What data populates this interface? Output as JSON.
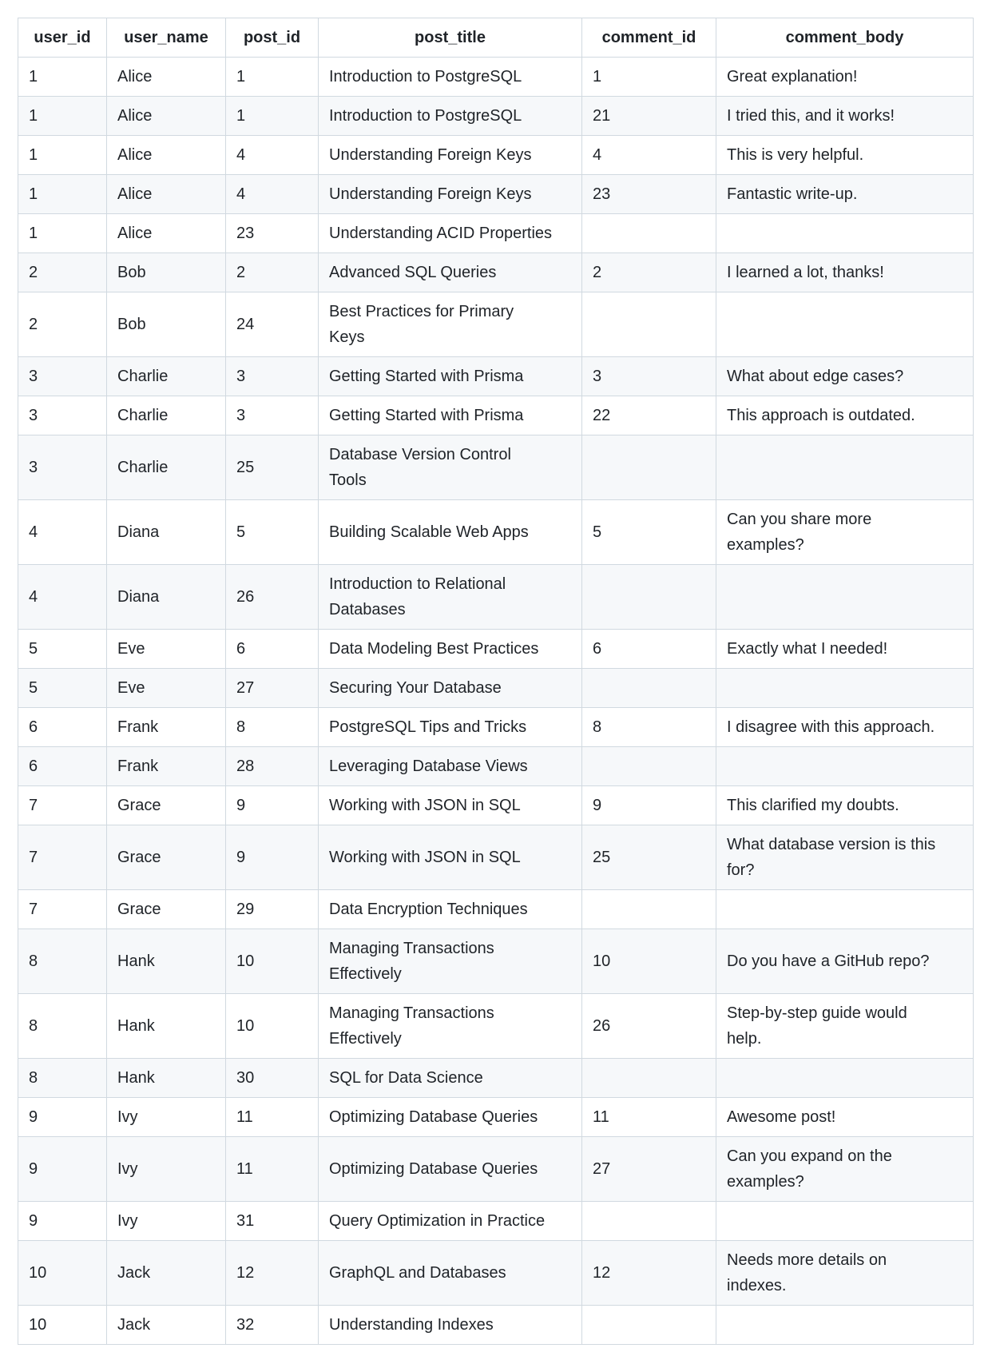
{
  "colors": {
    "text": "#1f2328",
    "border": "#d1d9e0",
    "stripe": "#f6f8fa",
    "background": "#ffffff"
  },
  "table": {
    "columns": [
      "user_id",
      "user_name",
      "post_id",
      "post_title",
      "comment_id",
      "comment_body"
    ],
    "rows": [
      [
        "1",
        "Alice",
        "1",
        "Introduction to PostgreSQL",
        "1",
        "Great explanation!"
      ],
      [
        "1",
        "Alice",
        "1",
        "Introduction to PostgreSQL",
        "21",
        "I tried this, and it works!"
      ],
      [
        "1",
        "Alice",
        "4",
        "Understanding Foreign Keys",
        "4",
        "This is very helpful."
      ],
      [
        "1",
        "Alice",
        "4",
        "Understanding Foreign Keys",
        "23",
        "Fantastic write-up."
      ],
      [
        "1",
        "Alice",
        "23",
        "Understanding ACID Properties",
        "",
        ""
      ],
      [
        "2",
        "Bob",
        "2",
        "Advanced SQL Queries",
        "2",
        "I learned a lot, thanks!"
      ],
      [
        "2",
        "Bob",
        "24",
        "Best Practices for Primary\nKeys",
        "",
        ""
      ],
      [
        "3",
        "Charlie",
        "3",
        "Getting Started with Prisma",
        "3",
        "What about edge cases?"
      ],
      [
        "3",
        "Charlie",
        "3",
        "Getting Started with Prisma",
        "22",
        "This approach is outdated."
      ],
      [
        "3",
        "Charlie",
        "25",
        "Database Version Control\nTools",
        "",
        ""
      ],
      [
        "4",
        "Diana",
        "5",
        "Building Scalable Web Apps",
        "5",
        "Can you share more\nexamples?"
      ],
      [
        "4",
        "Diana",
        "26",
        "Introduction to Relational\nDatabases",
        "",
        ""
      ],
      [
        "5",
        "Eve",
        "6",
        "Data Modeling Best Practices",
        "6",
        "Exactly what I needed!"
      ],
      [
        "5",
        "Eve",
        "27",
        "Securing Your Database",
        "",
        ""
      ],
      [
        "6",
        "Frank",
        "8",
        "PostgreSQL Tips and Tricks",
        "8",
        "I disagree with this approach."
      ],
      [
        "6",
        "Frank",
        "28",
        "Leveraging Database Views",
        "",
        ""
      ],
      [
        "7",
        "Grace",
        "9",
        "Working with JSON in SQL",
        "9",
        "This clarified my doubts."
      ],
      [
        "7",
        "Grace",
        "9",
        "Working with JSON in SQL",
        "25",
        "What database version is this\nfor?"
      ],
      [
        "7",
        "Grace",
        "29",
        "Data Encryption Techniques",
        "",
        ""
      ],
      [
        "8",
        "Hank",
        "10",
        "Managing Transactions\nEffectively",
        "10",
        "Do you have a GitHub repo?"
      ],
      [
        "8",
        "Hank",
        "10",
        "Managing Transactions\nEffectively",
        "26",
        "Step-by-step guide would\nhelp."
      ],
      [
        "8",
        "Hank",
        "30",
        "SQL for Data Science",
        "",
        ""
      ],
      [
        "9",
        "Ivy",
        "11",
        "Optimizing Database Queries",
        "11",
        "Awesome post!"
      ],
      [
        "9",
        "Ivy",
        "11",
        "Optimizing Database Queries",
        "27",
        "Can you expand on the\nexamples?"
      ],
      [
        "9",
        "Ivy",
        "31",
        "Query Optimization in Practice",
        "",
        ""
      ],
      [
        "10",
        "Jack",
        "12",
        "GraphQL and Databases",
        "12",
        "Needs more details on\nindexes."
      ],
      [
        "10",
        "Jack",
        "32",
        "Understanding Indexes",
        "",
        ""
      ]
    ]
  }
}
